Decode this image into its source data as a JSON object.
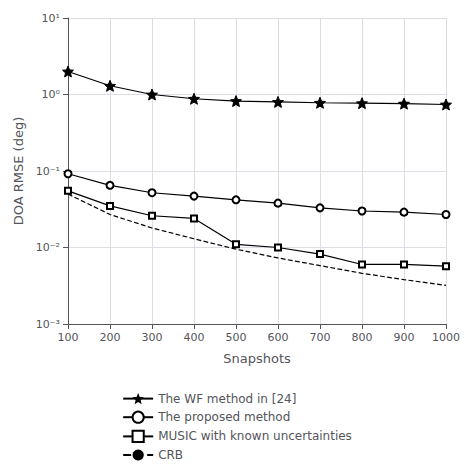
{
  "chart_data": {
    "type": "line",
    "x_label": "Snapshots",
    "y_label": "DOA RMSE (deg)",
    "x": [
      100,
      200,
      300,
      400,
      500,
      600,
      700,
      800,
      900,
      1000
    ],
    "series": [
      {
        "name": "The WF method in [24]",
        "color": "#000000",
        "marker": "star",
        "line_style": "solid",
        "values": [
          2.0,
          1.3,
          1.0,
          0.88,
          0.82,
          0.8,
          0.78,
          0.77,
          0.76,
          0.74
        ]
      },
      {
        "name": "The proposed method",
        "color": "#000000",
        "marker": "circle",
        "line_style": "solid",
        "values": [
          0.092,
          0.065,
          0.052,
          0.047,
          0.042,
          0.038,
          0.033,
          0.03,
          0.029,
          0.027
        ]
      },
      {
        "name": "MUSIC with known uncertainties",
        "color": "#000000",
        "marker": "square",
        "line_style": "solid",
        "values": [
          0.055,
          0.035,
          0.026,
          0.024,
          0.011,
          0.01,
          0.0082,
          0.006,
          0.006,
          0.0057
        ]
      },
      {
        "name": "CRB",
        "color": "#000000",
        "marker": "none",
        "line_style": "dashed",
        "values": [
          0.05,
          0.027,
          0.018,
          0.013,
          0.0095,
          0.0073,
          0.0058,
          0.0046,
          0.0038,
          0.0032
        ]
      }
    ],
    "xlim": [
      100,
      1000
    ],
    "xticks": [
      100,
      200,
      300,
      400,
      500,
      600,
      700,
      800,
      900,
      1000
    ],
    "ylim": [
      0.001,
      10
    ],
    "yticks": [
      {
        "value": 0.001,
        "label": "10⁻³"
      },
      {
        "value": 0.01,
        "label": "10⁻²"
      },
      {
        "value": 0.1,
        "label": "10⁻¹"
      },
      {
        "value": 1,
        "label": "10⁰"
      },
      {
        "value": 10,
        "label": "10¹"
      }
    ],
    "log": "y",
    "grid": true,
    "legend": "bottom"
  }
}
